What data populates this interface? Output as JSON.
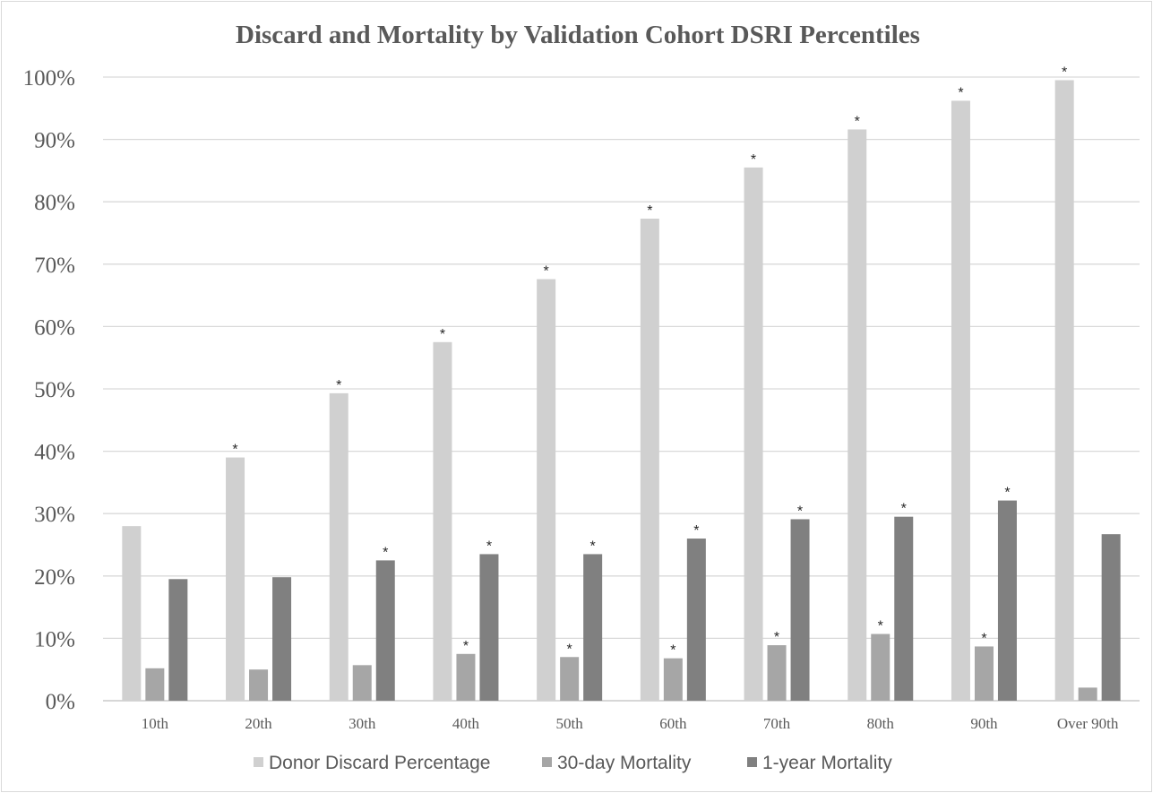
{
  "chart_data": {
    "type": "bar",
    "title": "Discard and Mortality by Validation Cohort DSRI Percentiles",
    "categories": [
      "10th",
      "20th",
      "30th",
      "40th",
      "50th",
      "60th",
      "70th",
      "80th",
      "90th",
      "Over 90th"
    ],
    "y_ticks": [
      "0%",
      "10%",
      "20%",
      "30%",
      "40%",
      "50%",
      "60%",
      "70%",
      "80%",
      "90%",
      "100%"
    ],
    "ylim": [
      0,
      100
    ],
    "grid": true,
    "legend_position": "bottom",
    "significance_marker": "*",
    "series": [
      {
        "name": "Donor Discard Percentage",
        "color": "#d0d0d0",
        "values": [
          28.0,
          39.0,
          49.3,
          57.5,
          67.6,
          77.3,
          85.5,
          91.6,
          96.2,
          99.5
        ],
        "significant": [
          false,
          true,
          true,
          true,
          true,
          true,
          true,
          true,
          true,
          true
        ]
      },
      {
        "name": "30-day Mortality",
        "color": "#a6a6a6",
        "values": [
          5.2,
          5.0,
          5.7,
          7.5,
          7.0,
          6.8,
          8.9,
          10.7,
          8.7,
          2.1
        ],
        "significant": [
          false,
          false,
          false,
          true,
          true,
          true,
          true,
          true,
          true,
          false
        ]
      },
      {
        "name": "1-year Mortality",
        "color": "#808080",
        "values": [
          19.5,
          19.8,
          22.5,
          23.5,
          23.5,
          26.0,
          29.1,
          29.5,
          32.1,
          26.7
        ],
        "significant": [
          false,
          false,
          true,
          true,
          true,
          true,
          true,
          true,
          true,
          false
        ]
      }
    ]
  }
}
